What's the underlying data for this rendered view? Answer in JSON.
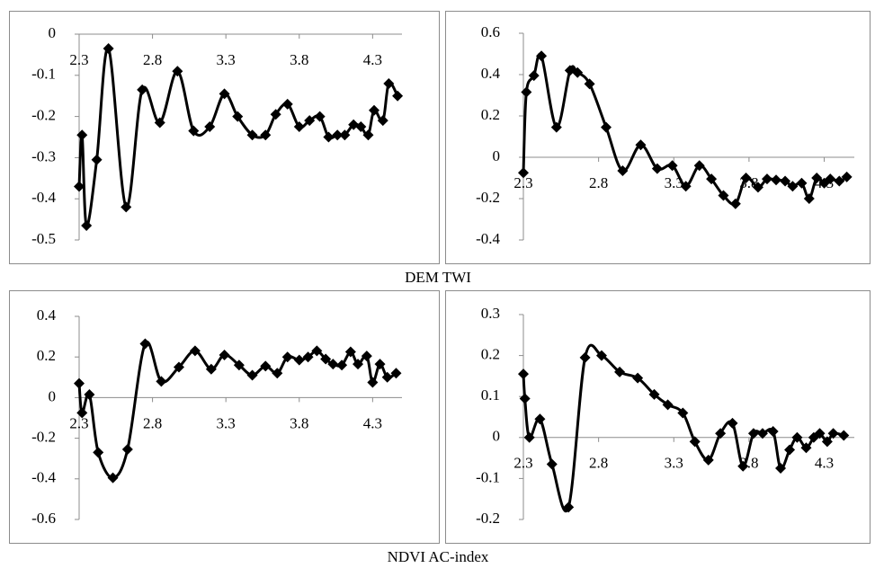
{
  "captions": [
    "DEM TWI",
    "NDVI AC-index"
  ],
  "chart_data": [
    {
      "type": "line",
      "smooth": true,
      "marker": "diamond",
      "color": "#000000",
      "xlim": [
        2.3,
        4.5
      ],
      "xticks": [
        2.3,
        2.8,
        3.3,
        3.8,
        4.3
      ],
      "ylim": [
        -0.5,
        0
      ],
      "yticks": [
        -0.5,
        -0.4,
        -0.3,
        -0.2,
        -0.1,
        0
      ],
      "x": [
        2.3,
        2.32,
        2.35,
        2.42,
        2.5,
        2.62,
        2.73,
        2.85,
        2.97,
        3.08,
        3.19,
        3.29,
        3.38,
        3.48,
        3.57,
        3.64,
        3.72,
        3.8,
        3.87,
        3.94,
        4.0,
        4.06,
        4.11,
        4.17,
        4.22,
        4.27,
        4.31,
        4.37,
        4.41,
        4.47
      ],
      "values": [
        -0.37,
        -0.245,
        -0.465,
        -0.305,
        -0.035,
        -0.42,
        -0.135,
        -0.215,
        -0.09,
        -0.235,
        -0.225,
        -0.145,
        -0.2,
        -0.245,
        -0.245,
        -0.195,
        -0.17,
        -0.225,
        -0.21,
        -0.2,
        -0.25,
        -0.245,
        -0.245,
        -0.22,
        -0.225,
        -0.245,
        -0.185,
        -0.21,
        -0.12,
        -0.15
      ]
    },
    {
      "type": "line",
      "smooth": true,
      "marker": "diamond",
      "color": "#000000",
      "xlim": [
        2.3,
        4.5
      ],
      "xticks": [
        2.3,
        2.8,
        3.3,
        3.8,
        4.3
      ],
      "ylim": [
        -0.4,
        0.6
      ],
      "yticks": [
        -0.4,
        -0.2,
        0,
        0.2,
        0.4,
        0.6
      ],
      "x": [
        2.3,
        2.32,
        2.37,
        2.42,
        2.52,
        2.61,
        2.66,
        2.74,
        2.85,
        2.96,
        3.08,
        3.19,
        3.29,
        3.38,
        3.47,
        3.55,
        3.63,
        3.71,
        3.78,
        3.86,
        3.92,
        3.98,
        4.04,
        4.09,
        4.15,
        4.2,
        4.25,
        4.3,
        4.34,
        4.4,
        4.45
      ],
      "values": [
        -0.075,
        0.315,
        0.395,
        0.49,
        0.145,
        0.42,
        0.41,
        0.355,
        0.145,
        -0.065,
        0.06,
        -0.055,
        -0.04,
        -0.14,
        -0.04,
        -0.105,
        -0.185,
        -0.225,
        -0.1,
        -0.145,
        -0.105,
        -0.11,
        -0.115,
        -0.14,
        -0.125,
        -0.2,
        -0.1,
        -0.125,
        -0.105,
        -0.115,
        -0.095
      ]
    },
    {
      "type": "line",
      "smooth": true,
      "marker": "diamond",
      "color": "#000000",
      "xlim": [
        2.3,
        4.5
      ],
      "xticks": [
        2.3,
        2.8,
        3.3,
        3.8,
        4.3
      ],
      "ylim": [
        -0.6,
        0.4
      ],
      "yticks": [
        -0.6,
        -0.4,
        -0.2,
        0,
        0.2,
        0.4
      ],
      "x": [
        2.3,
        2.32,
        2.37,
        2.43,
        2.53,
        2.63,
        2.75,
        2.86,
        2.98,
        3.09,
        3.2,
        3.29,
        3.39,
        3.48,
        3.57,
        3.65,
        3.72,
        3.8,
        3.86,
        3.92,
        3.98,
        4.03,
        4.09,
        4.15,
        4.2,
        4.26,
        4.3,
        4.35,
        4.4,
        4.46
      ],
      "values": [
        0.07,
        -0.075,
        0.015,
        -0.27,
        -0.395,
        -0.255,
        0.265,
        0.08,
        0.15,
        0.23,
        0.14,
        0.21,
        0.16,
        0.11,
        0.155,
        0.12,
        0.2,
        0.185,
        0.2,
        0.23,
        0.19,
        0.165,
        0.16,
        0.225,
        0.165,
        0.205,
        0.075,
        0.165,
        0.1,
        0.12
      ]
    },
    {
      "type": "line",
      "smooth": true,
      "marker": "diamond",
      "color": "#000000",
      "xlim": [
        2.3,
        4.5
      ],
      "xticks": [
        2.3,
        2.8,
        3.3,
        3.8,
        4.3
      ],
      "ylim": [
        -0.2,
        0.3
      ],
      "yticks": [
        -0.2,
        -0.1,
        0,
        0.1,
        0.2,
        0.3
      ],
      "x": [
        2.3,
        2.31,
        2.34,
        2.41,
        2.49,
        2.6,
        2.71,
        2.82,
        2.94,
        3.06,
        3.17,
        3.26,
        3.36,
        3.44,
        3.53,
        3.61,
        3.69,
        3.76,
        3.83,
        3.89,
        3.96,
        4.01,
        4.07,
        4.12,
        4.18,
        4.23,
        4.27,
        4.32,
        4.36,
        4.43
      ],
      "values": [
        0.155,
        0.095,
        0.0,
        0.045,
        -0.065,
        -0.17,
        0.195,
        0.2,
        0.16,
        0.145,
        0.105,
        0.08,
        0.06,
        -0.01,
        -0.055,
        0.01,
        0.035,
        -0.07,
        0.01,
        0.01,
        0.015,
        -0.075,
        -0.03,
        0.0,
        -0.025,
        0.0,
        0.01,
        -0.01,
        0.01,
        0.005
      ]
    }
  ]
}
